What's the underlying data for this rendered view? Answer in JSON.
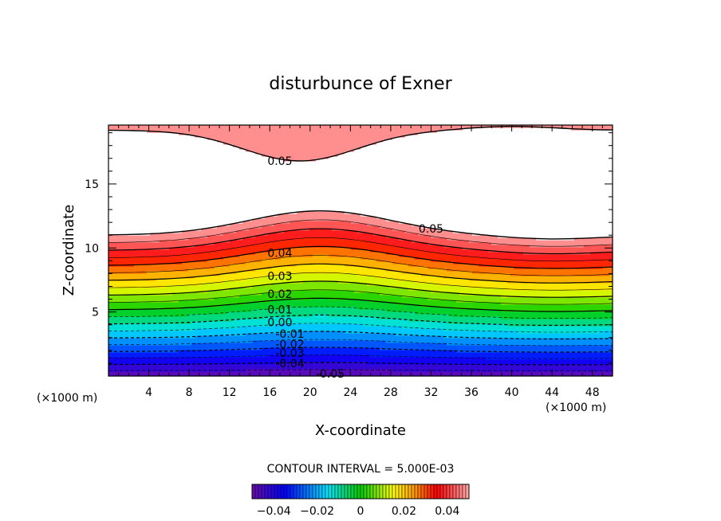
{
  "chart_data": {
    "type": "contour",
    "title": "disturbunce of Exner",
    "xlabel": "X-coordinate",
    "ylabel": "Z-coordinate",
    "x_unit": "(×1000 m)",
    "x_unit_right": "(×1000 m)",
    "xlim": [
      0,
      50
    ],
    "ylim": [
      0,
      19.6
    ],
    "x_ticks": [
      4,
      8,
      12,
      16,
      20,
      24,
      28,
      32,
      36,
      40,
      44,
      48
    ],
    "y_ticks": [
      5,
      10,
      15
    ],
    "contour_interval_text": "CONTOUR INTERVAL = 5.000E-03",
    "levels": [
      -0.05,
      -0.045,
      -0.04,
      -0.035,
      -0.03,
      -0.025,
      -0.02,
      -0.015,
      -0.01,
      -0.005,
      0.0,
      0.005,
      0.01,
      0.015,
      0.02,
      0.025,
      0.03,
      0.035,
      0.04,
      0.045,
      0.05
    ],
    "contour_labels": [
      {
        "text": "0.05",
        "x": 17,
        "z": 16.8
      },
      {
        "text": "0.05",
        "x": 32,
        "z": 11.5
      },
      {
        "text": "0.04",
        "x": 17,
        "z": 9.6
      },
      {
        "text": "0.03",
        "x": 17,
        "z": 7.8
      },
      {
        "text": "0.02",
        "x": 17,
        "z": 6.4
      },
      {
        "text": "0.01",
        "x": 17,
        "z": 5.2
      },
      {
        "text": "0.00",
        "x": 17,
        "z": 4.2
      },
      {
        "text": "-0.01",
        "x": 18,
        "z": 3.3
      },
      {
        "text": "-0.02",
        "x": 18,
        "z": 2.5
      },
      {
        "text": "-0.03",
        "x": 18,
        "z": 1.8
      },
      {
        "text": "-0.04",
        "x": 18,
        "z": 1.0
      },
      {
        "text": "-0.05",
        "x": 22,
        "z": 0.2
      }
    ],
    "colorbar": {
      "range": [
        -0.05,
        0.05
      ],
      "tick_labels": [
        "-0.04",
        "-0.02",
        "0",
        "0.02",
        "0.04"
      ],
      "tick_values": [
        -0.04,
        -0.02,
        0,
        0.02,
        0.04
      ]
    },
    "colors": {
      "violet": "#6a0dad",
      "blue": "#0000ff",
      "cyan": "#00e5ff",
      "green": "#00cc00",
      "yellow": "#ffff00",
      "orange": "#ff9900",
      "red": "#ff0000",
      "pink": "#ffaaaa"
    }
  }
}
